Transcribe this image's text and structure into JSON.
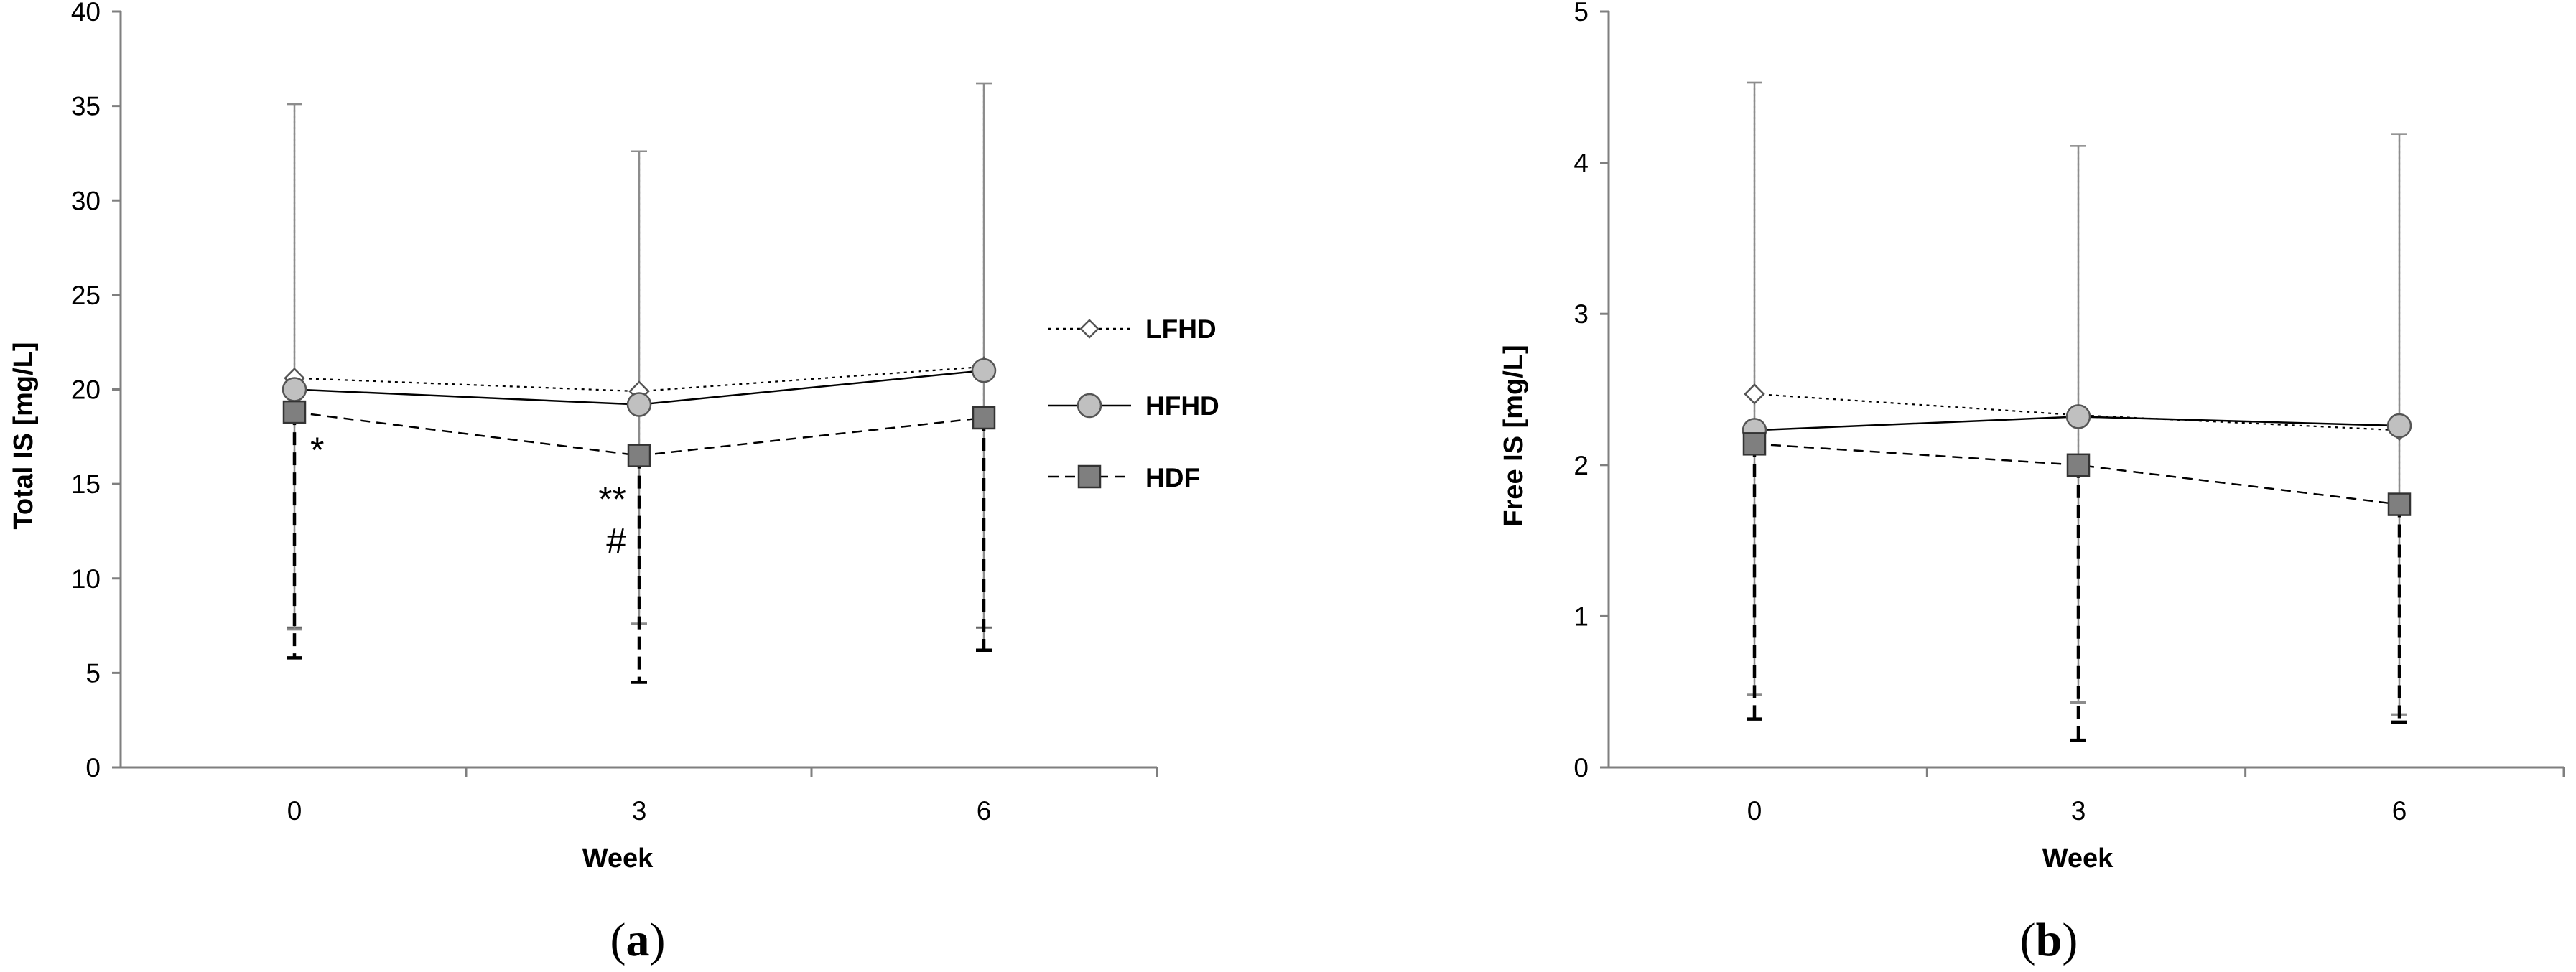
{
  "chart_data": [
    {
      "type": "line",
      "panel": "a",
      "ylabel": "Total IS [mg/L]",
      "xlabel": "Week",
      "x": [
        0,
        3,
        6
      ],
      "x_ticks": [
        "0",
        "3",
        "6"
      ],
      "ylim": [
        0,
        40
      ],
      "y_ticks": [
        "0",
        "5",
        "10",
        "15",
        "20",
        "25",
        "30",
        "35",
        "40"
      ],
      "grid": false,
      "legend_position": "right",
      "series": [
        {
          "name": "LFHD",
          "marker": "diamond",
          "line": "dotted",
          "color": "#ffffff",
          "values": [
            20.6,
            19.9,
            21.2
          ],
          "err_upper": [
            35.1,
            32.6,
            36.2
          ],
          "err_lower": [
            7.4,
            7.6,
            7.4
          ]
        },
        {
          "name": "HFHD",
          "marker": "circle",
          "line": "solid",
          "color": "#c0c0c0",
          "values": [
            20.0,
            19.2,
            21.0
          ],
          "err_upper": [
            35.1,
            32.6,
            36.2
          ],
          "err_lower": [
            7.3,
            7.6,
            6.2
          ]
        },
        {
          "name": "HDF",
          "marker": "square",
          "line": "dashed",
          "color": "#7f7f7f",
          "values": [
            18.8,
            16.5,
            18.5
          ],
          "err_upper": [
            18.8,
            16.5,
            18.5
          ],
          "err_lower": [
            5.8,
            4.5,
            6.2
          ]
        }
      ],
      "annotations": [
        {
          "text": "*",
          "x": 0,
          "y": 16.9
        },
        {
          "text": "**",
          "x": 3,
          "y": 14.3
        },
        {
          "text": "#",
          "x": 3,
          "y": 12.1
        }
      ]
    },
    {
      "type": "line",
      "panel": "b",
      "ylabel": "Free IS [mg/L]",
      "xlabel": "Week",
      "x": [
        0,
        3,
        6
      ],
      "x_ticks": [
        "0",
        "3",
        "6"
      ],
      "ylim": [
        0,
        5
      ],
      "y_ticks": [
        "0",
        "1",
        "2",
        "3",
        "4",
        "5"
      ],
      "grid": false,
      "series": [
        {
          "name": "LFHD",
          "marker": "diamond",
          "line": "dotted",
          "color": "#ffffff",
          "values": [
            2.47,
            2.33,
            2.23
          ],
          "err_upper": [
            4.53,
            4.11,
            4.19
          ],
          "err_lower": [
            0.48,
            0.43,
            0.35
          ]
        },
        {
          "name": "HFHD",
          "marker": "circle",
          "line": "solid",
          "color": "#c0c0c0",
          "values": [
            2.23,
            2.32,
            2.26
          ],
          "err_upper": [
            4.53,
            4.11,
            4.19
          ],
          "err_lower": [
            0.48,
            0.43,
            0.35
          ]
        },
        {
          "name": "HDF",
          "marker": "square",
          "line": "dashed",
          "color": "#7f7f7f",
          "values": [
            2.14,
            2.0,
            1.74
          ],
          "err_upper": [
            2.14,
            2.0,
            1.74
          ],
          "err_lower": [
            0.32,
            0.18,
            0.3
          ]
        }
      ]
    }
  ],
  "legend": {
    "items": [
      "LFHD",
      "HFHD",
      "HDF"
    ]
  },
  "panel_labels": [
    "(a)",
    "(b)"
  ]
}
